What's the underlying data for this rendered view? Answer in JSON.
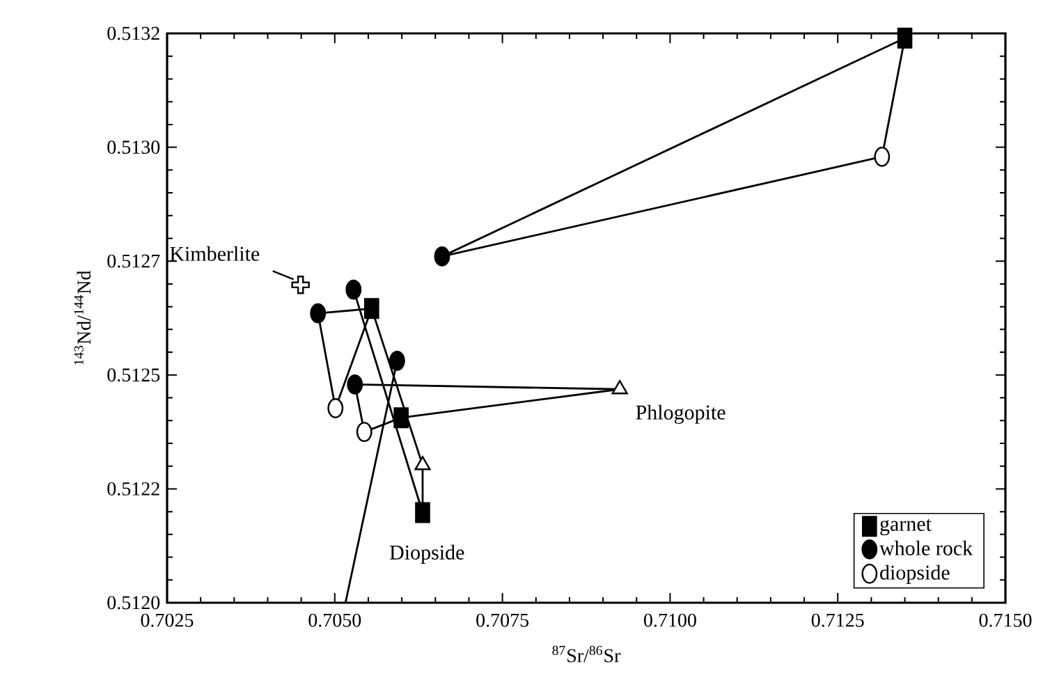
{
  "chart_data": {
    "type": "scatter",
    "xlabel": "$^{87}$Sr/$^{86}$Sr",
    "ylabel": "$^{143}$Nd/$^{144}$Nd",
    "xlim": [
      0.7025,
      0.715
    ],
    "ylim": [
      0.512,
      0.5132
    ],
    "xticks": [
      0.7025,
      {
        "value": 0.705,
        "label": "0.7050"
      },
      0.7075,
      {
        "value": 0.71,
        "label": "0.7100"
      },
      0.7125,
      {
        "value": 0.715,
        "label": "0.7150"
      }
    ],
    "yticks": [
      {
        "value": 0.512,
        "label": "0.5120"
      },
      {
        "value": 0.51224,
        "label": "0.5122"
      },
      {
        "value": 0.51248,
        "label": "0.5125"
      },
      {
        "value": 0.51272,
        "label": "0.5127"
      },
      {
        "value": 0.51296,
        "label": "0.5130"
      },
      0.5132
    ],
    "grid": false,
    "legend": "bottom right",
    "series": [
      {
        "type": "line",
        "color": "#000000",
        "marker": "none",
        "line_style": "solid",
        "x": [
          0.7066,
          0.7135
        ],
        "values": [
          0.51273,
          0.51319
        ]
      },
      {
        "type": "line",
        "color": "#000000",
        "marker": "none",
        "line_style": "solid",
        "x": [
          0.71316,
          0.7135
        ],
        "values": [
          0.51294,
          0.51319
        ]
      },
      {
        "type": "line",
        "color": "#000000",
        "marker": "none",
        "line_style": "solid",
        "x": [
          0.7066,
          0.71316
        ],
        "values": [
          0.51273,
          0.51294
        ]
      },
      {
        "type": "line",
        "color": "#000000",
        "marker": "none",
        "line_style": "solid",
        "x": [
          0.70475,
          0.70555
        ],
        "values": [
          0.51261,
          0.51262
        ]
      },
      {
        "type": "line",
        "color": "#000000",
        "marker": "none",
        "line_style": "solid",
        "x": [
          0.70475,
          0.70501
        ],
        "values": [
          0.51261,
          0.51241
        ]
      },
      {
        "type": "line",
        "color": "#000000",
        "marker": "none",
        "line_style": "solid",
        "x": [
          0.70501,
          0.70555
        ],
        "values": [
          0.51241,
          0.51262
        ]
      },
      {
        "type": "line",
        "color": "#000000",
        "marker": "none",
        "line_style": "solid",
        "x": [
          0.70528,
          0.70631
        ],
        "values": [
          0.51266,
          0.51219
        ]
      },
      {
        "type": "line",
        "color": "#000000",
        "marker": "none",
        "line_style": "solid",
        "x": [
          0.70631,
          0.70631
        ],
        "values": [
          0.51219,
          0.51229
        ]
      },
      {
        "type": "line",
        "color": "#000000",
        "marker": "none",
        "line_style": "solid",
        "x": [
          0.70555,
          0.70631
        ],
        "values": [
          0.51262,
          0.51229
        ]
      },
      {
        "type": "line",
        "color": "#000000",
        "marker": "none",
        "line_style": "solid",
        "x": [
          0.7053,
          0.70925
        ],
        "values": [
          0.51246,
          0.51245
        ]
      },
      {
        "type": "line",
        "color": "#000000",
        "marker": "none",
        "line_style": "solid",
        "x": [
          0.70599,
          0.70925
        ],
        "values": [
          0.51239,
          0.51245
        ]
      },
      {
        "type": "line",
        "color": "#000000",
        "marker": "none",
        "line_style": "solid",
        "x": [
          0.70544,
          0.70599
        ],
        "values": [
          0.51236,
          0.51239
        ]
      },
      {
        "type": "line",
        "color": "#000000",
        "marker": "none",
        "line_style": "solid",
        "x": [
          0.7053,
          0.70544
        ],
        "values": [
          0.51246,
          0.51236
        ]
      },
      {
        "type": "line",
        "color": "#000000",
        "marker": "none",
        "line_style": "solid",
        "x": [
          0.70516,
          0.70593
        ],
        "values": [
          0.512,
          0.51251
        ]
      },
      {
        "name": "garnet",
        "color": "#000000",
        "marker": "square",
        "x": [
          0.7135,
          0.70555,
          0.70599,
          0.70631
        ],
        "values": [
          0.51319,
          0.51262,
          0.51239,
          0.51219
        ]
      },
      {
        "name": "whole rock",
        "color": "#000000",
        "marker": "circle",
        "x": [
          0.7066,
          0.70475,
          0.70528,
          0.70593,
          0.7053
        ],
        "values": [
          0.51273,
          0.51261,
          0.51266,
          0.51251,
          0.51246
        ]
      },
      {
        "name": "diopside",
        "color": "#ffffff",
        "marker": "circle",
        "x": [
          0.71316,
          0.70501,
          0.70544
        ],
        "values": [
          0.51294,
          0.51241,
          0.51236
        ]
      },
      {
        "color": "#ffffff",
        "marker": "cross",
        "x": [
          0.70449
        ],
        "values": [
          0.51267
        ]
      },
      {
        "color": "#ffffff",
        "marker": "triangle",
        "x": [
          0.70925,
          0.70631
        ],
        "values": [
          0.51245,
          0.51229
        ]
      }
    ],
    "annotations": [
      {
        "text": "Kimberlite",
        "x": 0.70449,
        "y": 0.51267
      },
      {
        "text": "Phlogopite",
        "x": 0.70925,
        "y": 0.51245
      },
      "Diopside"
    ]
  }
}
